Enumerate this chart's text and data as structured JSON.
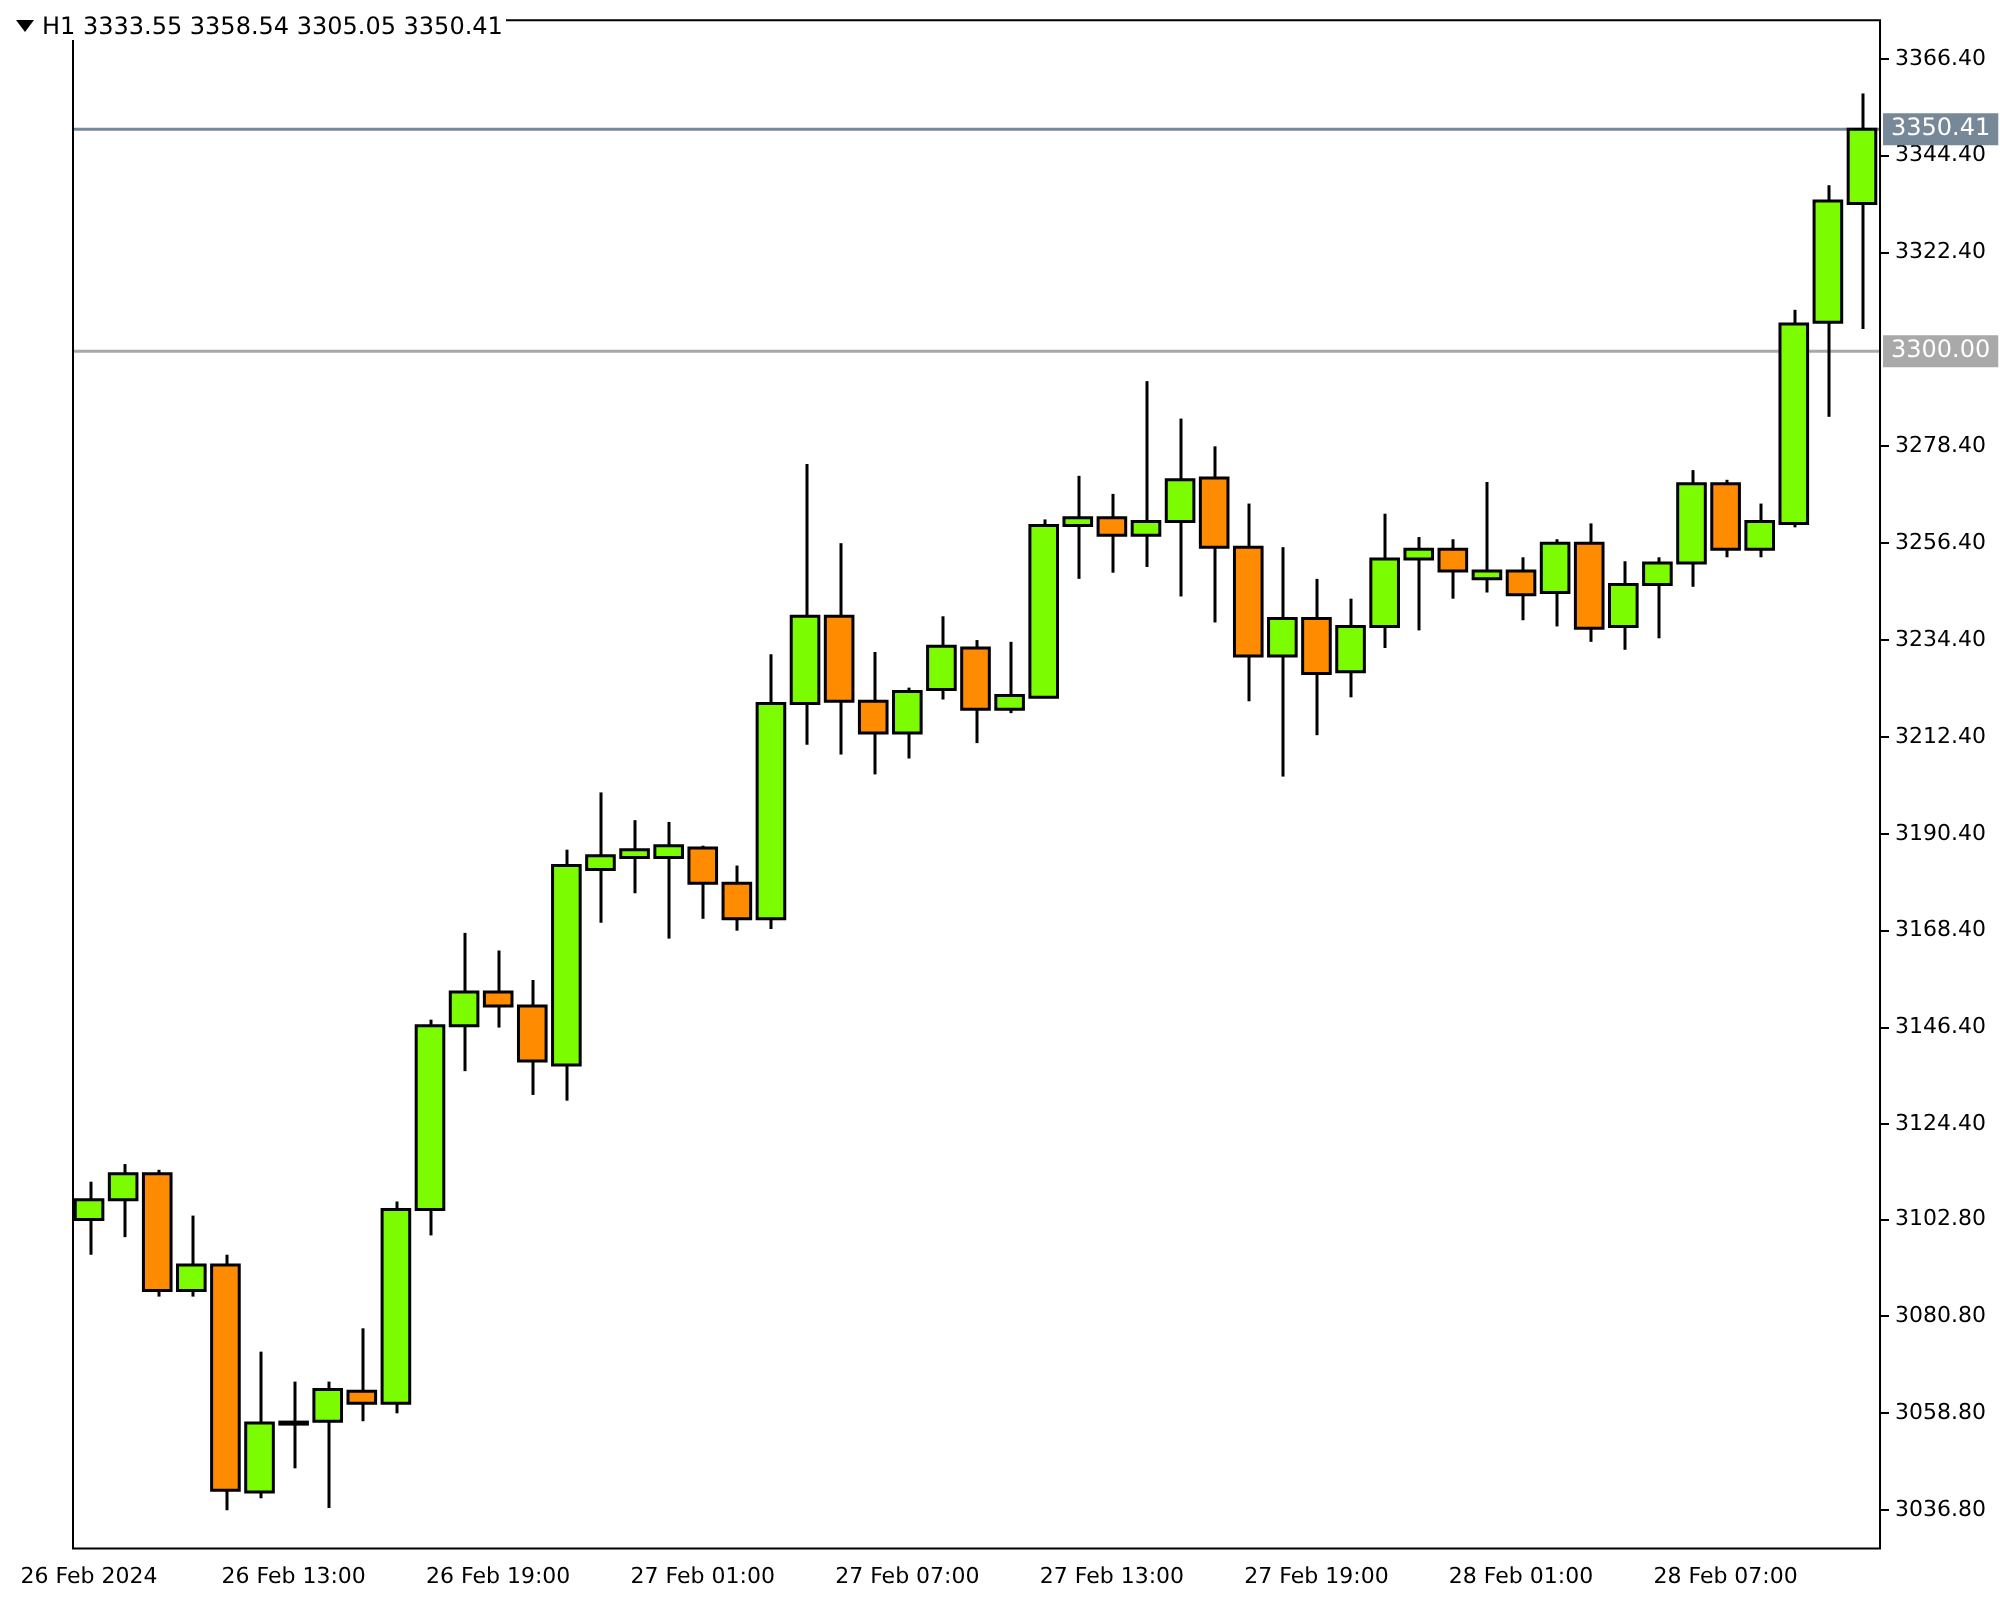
{
  "chart_data": {
    "type": "candlestick",
    "title": "H1  3333.55 3358.54 3305.05 3350.41",
    "categories": [
      "26 Feb 2024",
      null,
      null,
      null,
      null,
      null,
      "26 Feb 13:00",
      null,
      null,
      null,
      null,
      null,
      "26 Feb 19:00",
      null,
      null,
      null,
      null,
      null,
      "27 Feb 01:00",
      null,
      null,
      null,
      null,
      null,
      "27 Feb 07:00",
      null,
      null,
      null,
      null,
      null,
      "27 Feb 13:00",
      null,
      null,
      null,
      null,
      null,
      "27 Feb 19:00",
      null,
      null,
      null,
      null,
      null,
      "28 Feb 01:00",
      null,
      null,
      null,
      null,
      null,
      "28 Feb 07:00",
      null,
      null,
      null,
      null
    ],
    "ohlc": [
      [
        3102.8,
        3111.4,
        3094.8,
        3107.3
      ],
      [
        3107.3,
        3115.4,
        3098.8,
        3113.2
      ],
      [
        3113.2,
        3114.1,
        3085.3,
        3086.7
      ],
      [
        3086.7,
        3103.7,
        3085.3,
        3092.5
      ],
      [
        3092.5,
        3094.8,
        3036.8,
        3041.3
      ],
      [
        3040.9,
        3072.8,
        3039.5,
        3056.6
      ],
      [
        3056.4,
        3066.0,
        3046.3,
        3056.8
      ],
      [
        3057.0,
        3066.0,
        3037.3,
        3064.2
      ],
      [
        3063.8,
        3078.1,
        3057.0,
        3061.1
      ],
      [
        3061.1,
        3106.9,
        3058.8,
        3105.1
      ],
      [
        3105.1,
        3148.2,
        3099.2,
        3146.8
      ],
      [
        3146.8,
        3167.9,
        3136.5,
        3154.5
      ],
      [
        3154.5,
        3163.9,
        3146.4,
        3151.3
      ],
      [
        3151.3,
        3157.2,
        3131.1,
        3138.8
      ],
      [
        3137.9,
        3186.8,
        3129.8,
        3183.2
      ],
      [
        3182.3,
        3199.8,
        3170.2,
        3185.4
      ],
      [
        3185.0,
        3193.5,
        3176.9,
        3186.8
      ],
      [
        3185.0,
        3193.1,
        3166.6,
        3187.7
      ],
      [
        3187.2,
        3187.7,
        3171.1,
        3179.2
      ],
      [
        3179.2,
        3183.2,
        3168.4,
        3171.1
      ],
      [
        3171.1,
        3231.2,
        3168.8,
        3220.0
      ],
      [
        3220.0,
        3274.4,
        3210.6,
        3239.8
      ],
      [
        3239.8,
        3256.4,
        3208.4,
        3220.5
      ],
      [
        3220.5,
        3231.7,
        3203.9,
        3213.3
      ],
      [
        3213.3,
        3223.6,
        3207.5,
        3222.7
      ],
      [
        3223.2,
        3239.8,
        3220.9,
        3233.0
      ],
      [
        3232.6,
        3234.4,
        3211.0,
        3218.7
      ],
      [
        3218.7,
        3234.0,
        3217.8,
        3221.8
      ],
      [
        3221.4,
        3261.8,
        3221.4,
        3260.4
      ],
      [
        3260.4,
        3271.7,
        3248.3,
        3262.2
      ],
      [
        3262.2,
        3267.6,
        3249.7,
        3258.2
      ],
      [
        3258.2,
        3293.2,
        3251.0,
        3261.3
      ],
      [
        3261.3,
        3284.7,
        3244.3,
        3270.8
      ],
      [
        3271.2,
        3278.4,
        3238.4,
        3255.5
      ],
      [
        3255.5,
        3265.4,
        3220.5,
        3230.8
      ],
      [
        3230.8,
        3255.5,
        3203.4,
        3239.3
      ],
      [
        3239.3,
        3248.3,
        3212.8,
        3226.8
      ],
      [
        3227.2,
        3243.8,
        3221.4,
        3237.5
      ],
      [
        3237.5,
        3263.1,
        3232.6,
        3252.8
      ],
      [
        3252.8,
        3257.8,
        3236.6,
        3255.0
      ],
      [
        3255.0,
        3257.3,
        3243.8,
        3250.1
      ],
      [
        3248.3,
        3270.3,
        3245.2,
        3250.1
      ],
      [
        3250.1,
        3253.2,
        3238.9,
        3244.7
      ],
      [
        3245.2,
        3257.3,
        3237.5,
        3256.4
      ],
      [
        3256.4,
        3260.9,
        3234.0,
        3237.1
      ],
      [
        3237.5,
        3252.3,
        3232.2,
        3247.0
      ],
      [
        3247.0,
        3253.2,
        3234.8,
        3251.9
      ],
      [
        3251.9,
        3273.0,
        3246.5,
        3269.9
      ],
      [
        3269.9,
        3270.8,
        3253.2,
        3255.0
      ],
      [
        3255.0,
        3265.4,
        3253.2,
        3261.3
      ],
      [
        3260.9,
        3309.4,
        3260.0,
        3306.2
      ],
      [
        3306.6,
        3337.7,
        3285.1,
        3334.1
      ],
      [
        3333.55,
        3358.54,
        3305.05,
        3350.41
      ]
    ],
    "colors": [
      "#7cfc00",
      "#7cfc00",
      "#ff8c00",
      "#7cfc00",
      "#ff8c00",
      "#7cfc00",
      "#7cfc00",
      "#7cfc00",
      "#ff8c00",
      "#7cfc00",
      "#7cfc00",
      "#7cfc00",
      "#ff8c00",
      "#ff8c00",
      "#7cfc00",
      "#7cfc00",
      "#7cfc00",
      "#7cfc00",
      "#ff8c00",
      "#ff8c00",
      "#7cfc00",
      "#7cfc00",
      "#ff8c00",
      "#ff8c00",
      "#7cfc00",
      "#7cfc00",
      "#ff8c00",
      "#7cfc00",
      "#7cfc00",
      "#7cfc00",
      "#ff8c00",
      "#7cfc00",
      "#7cfc00",
      "#ff8c00",
      "#ff8c00",
      "#7cfc00",
      "#ff8c00",
      "#7cfc00",
      "#7cfc00",
      "#7cfc00",
      "#ff8c00",
      "#7cfc00",
      "#ff8c00",
      "#7cfc00",
      "#ff8c00",
      "#7cfc00",
      "#7cfc00",
      "#7cfc00",
      "#ff8c00",
      "#7cfc00",
      "#7cfc00",
      "#7cfc00",
      "#7cfc00"
    ],
    "ylim": [
      3028.3,
      3375.4
    ],
    "yticks": [
      {
        "value": 3036.8,
        "label": "3036.80"
      },
      {
        "value": 3058.8,
        "label": "3058.80"
      },
      {
        "value": 3080.8,
        "label": "3080.80"
      },
      {
        "value": 3102.8,
        "label": "3102.80"
      },
      {
        "value": 3124.4,
        "label": "3124.40"
      },
      {
        "value": 3146.4,
        "label": "3146.40"
      },
      {
        "value": 3168.4,
        "label": "3168.40"
      },
      {
        "value": 3190.4,
        "label": "3190.40"
      },
      {
        "value": 3212.4,
        "label": "3212.40"
      },
      {
        "value": 3234.4,
        "label": "3234.40"
      },
      {
        "value": 3256.4,
        "label": "3256.40"
      },
      {
        "value": 3278.4,
        "label": "3278.40"
      },
      {
        "value": 3322.4,
        "label": "3322.40"
      },
      {
        "value": 3344.4,
        "label": "3344.40"
      },
      {
        "value": 3366.4,
        "label": "3366.40"
      }
    ],
    "ref_lines": [
      {
        "axis": "y",
        "value": 3300,
        "label": "3300.00",
        "color": "#a9a9a9"
      },
      {
        "axis": "y",
        "value": 3350.41,
        "label": "3350.41",
        "color": "#778899"
      }
    ],
    "grid": false,
    "legend": false
  }
}
